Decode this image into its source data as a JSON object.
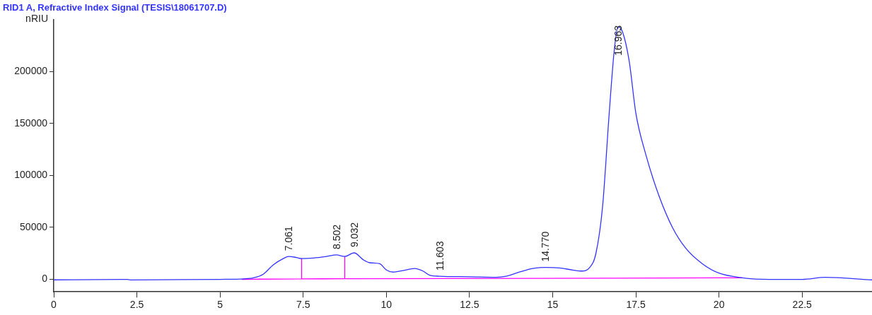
{
  "chart_data": {
    "type": "line",
    "title": "RID1 A, Refractive Index Signal (TESIS\\18061707.D)",
    "ylabel": "nRIU",
    "xlim": [
      0,
      24.6
    ],
    "xticks": [
      0,
      2.5,
      5,
      7.5,
      10,
      12.5,
      15,
      17.5,
      20,
      22.5
    ],
    "ylim": [
      -12000,
      250000
    ],
    "yticks": [
      0,
      50000,
      100000,
      150000,
      200000
    ],
    "grid": false,
    "legend": false,
    "marker": "none",
    "line_style": "solid",
    "series": [
      {
        "color": "#3333ff",
        "x": [
          0,
          2.2,
          2.3,
          5,
          5.7,
          6,
          6.3,
          6.6,
          6.9,
          7.06,
          7.3,
          7.45,
          7.8,
          8.2,
          8.5,
          8.75,
          9.03,
          9.3,
          9.5,
          9.8,
          10,
          10.2,
          10.5,
          10.85,
          11.1,
          11.3,
          11.6,
          12.5,
          13.3,
          13.6,
          14,
          14.4,
          14.77,
          15.2,
          15.6,
          15.88,
          16.1,
          16.3,
          16.5,
          16.7,
          16.85,
          16.963,
          17.1,
          17.3,
          17.5,
          17.8,
          18.2,
          18.6,
          19,
          19.5,
          20,
          20.7,
          21.5,
          22.5,
          23.2,
          24.6
        ],
        "values": [
          -500,
          0,
          -500,
          0,
          500,
          1500,
          5000,
          14000,
          20000,
          22000,
          21000,
          20000,
          20500,
          22000,
          23500,
          22000,
          25500,
          19000,
          16000,
          15000,
          9000,
          7000,
          8500,
          10500,
          8000,
          4000,
          3000,
          2500,
          2000,
          3000,
          7000,
          10500,
          11500,
          11000,
          9000,
          8000,
          11000,
          25000,
          70000,
          160000,
          220000,
          243000,
          238000,
          210000,
          160000,
          120000,
          80000,
          50000,
          30000,
          15000,
          6000,
          1500,
          0,
          0,
          2000,
          -500
        ]
      },
      {
        "color": "#ff00ff",
        "x": [
          5.66,
          7.45,
          7.45,
          7.45,
          8.75,
          8.75,
          8.75,
          20.7
        ],
        "values": [
          0,
          500,
          20000,
          500,
          600,
          22000,
          600,
          1500
        ]
      }
    ],
    "annotations": [
      {
        "text": "7.061",
        "x": 7.061,
        "y": 22000
      },
      {
        "text": "8.502",
        "x": 8.502,
        "y": 23500
      },
      {
        "text": "9.032",
        "x": 9.032,
        "y": 25500
      },
      {
        "text": "11.603",
        "x": 11.603,
        "y": 3000
      },
      {
        "text": "14.770",
        "x": 14.77,
        "y": 11500
      },
      {
        "text": "16.963",
        "x": 16.963,
        "y": 243000
      }
    ]
  }
}
